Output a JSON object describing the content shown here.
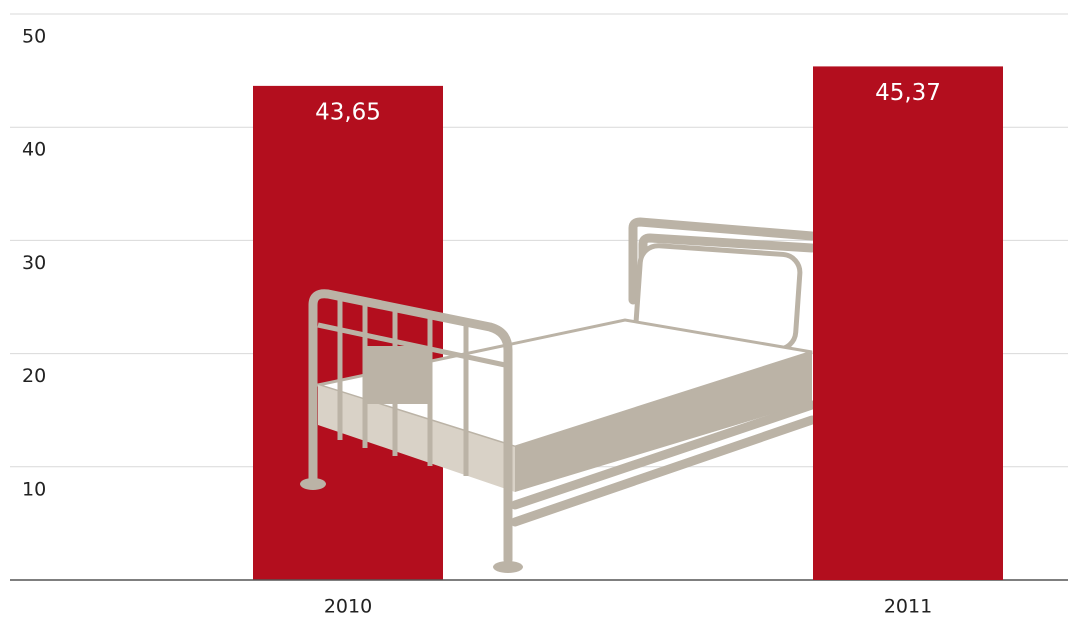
{
  "chart_data": {
    "type": "bar",
    "categories": [
      "2010",
      "2011"
    ],
    "values": [
      43.65,
      45.37
    ],
    "value_labels": [
      "43,65",
      "45,37"
    ],
    "color": "#b30e1e",
    "ylim": [
      0,
      50
    ],
    "yticks": [
      10,
      20,
      30,
      40,
      50
    ],
    "grid": true
  }
}
